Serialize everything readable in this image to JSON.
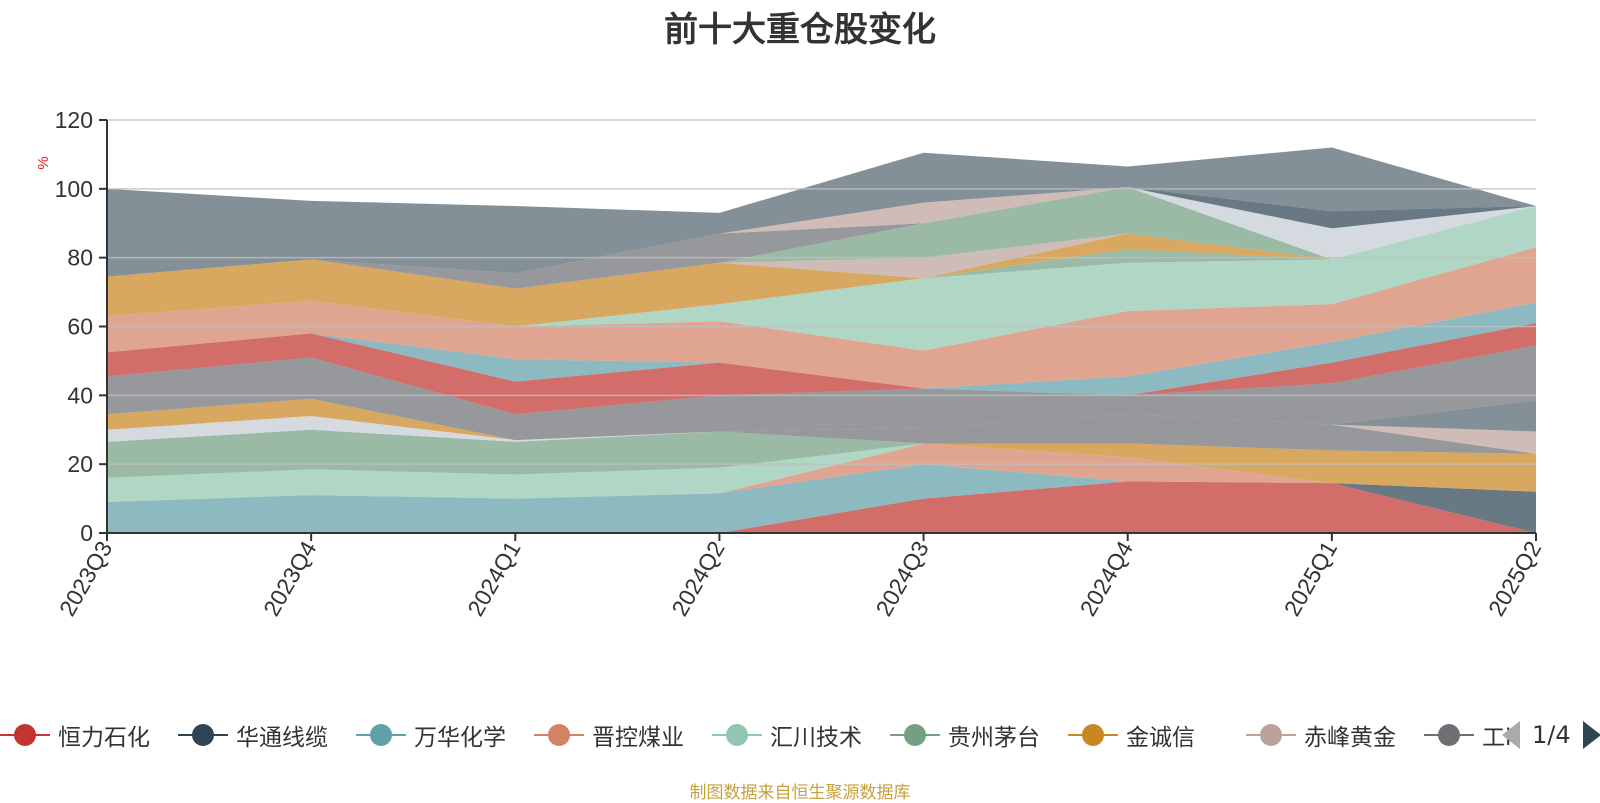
{
  "title": "前十大重仓股变化",
  "source": "制图数据来自恒生聚源数据库",
  "pager": {
    "text": "1/4"
  },
  "legend": [
    {
      "name": "恒力石化",
      "color": "#c23531"
    },
    {
      "name": "华通线缆",
      "color": "#2f4554"
    },
    {
      "name": "万华化学",
      "color": "#61a0a8"
    },
    {
      "name": "晋控煤业",
      "color": "#d48265"
    },
    {
      "name": "汇川技术",
      "color": "#91c7ae"
    },
    {
      "name": "贵州茅台",
      "color": "#749f83"
    },
    {
      "name": "金诚信",
      "color": "#ca8622"
    },
    {
      "name": "赤峰黄金",
      "color": "#bda29a"
    },
    {
      "name": "工i",
      "color": "#6e7074"
    }
  ],
  "chart_data": {
    "type": "area",
    "stacked": true,
    "title": "前十大重仓股变化",
    "ylabel": "%",
    "ylim": [
      0,
      120
    ],
    "yticks": [
      0,
      20,
      40,
      60,
      80,
      100,
      120
    ],
    "categories": [
      "2023Q3",
      "2023Q4",
      "2024Q1",
      "2024Q2",
      "2024Q3",
      "2024Q4",
      "2025Q1",
      "2025Q2"
    ],
    "series": [
      {
        "color": "#c23531",
        "values": [
          0,
          0,
          0,
          0,
          10,
          15,
          14.5,
          0
        ]
      },
      {
        "color": "#2f4554",
        "values": [
          0,
          0,
          0,
          0,
          0,
          0,
          0,
          12
        ]
      },
      {
        "color": "#61a0a8",
        "values": [
          9,
          11,
          10,
          11.5,
          10,
          0,
          0,
          0
        ]
      },
      {
        "color": "#d48265",
        "values": [
          0,
          0,
          0,
          0,
          6,
          7,
          0,
          0
        ]
      },
      {
        "color": "#91c7ae",
        "values": [
          7,
          7.5,
          7,
          7.5,
          0,
          0,
          0,
          0
        ]
      },
      {
        "color": "#ca8622",
        "values": [
          0,
          0,
          0,
          0,
          0,
          4,
          9.5,
          11
        ]
      },
      {
        "color": "#749f83",
        "values": [
          10.5,
          11.5,
          9.5,
          10.5,
          0,
          0,
          0,
          0
        ]
      },
      {
        "color": "#6e7074",
        "values": [
          0,
          0,
          0,
          0,
          4.5,
          8.5,
          7.5,
          0
        ]
      },
      {
        "color": "#bda29a",
        "values": [
          0,
          0,
          0,
          0,
          0,
          0,
          0,
          6.5
        ]
      },
      {
        "color": "#546570",
        "values": [
          0,
          0,
          0,
          0,
          0,
          0,
          0,
          9
        ]
      },
      {
        "color": "#c4ccd3",
        "values": [
          3.5,
          4,
          0.5,
          0,
          0,
          0,
          0,
          0
        ]
      },
      {
        "color": "#ca8622",
        "values": [
          4.5,
          5,
          0,
          0,
          0,
          0,
          0,
          0
        ]
      },
      {
        "color": "#6e7074",
        "values": [
          11,
          12,
          7.5,
          10.5,
          11.5,
          5.5,
          12,
          16
        ]
      },
      {
        "color": "#c23531",
        "values": [
          7,
          7,
          9.5,
          9.5,
          0,
          0,
          6,
          6.5
        ]
      },
      {
        "color": "#61a0a8",
        "values": [
          0,
          0,
          6.5,
          0,
          0,
          5.5,
          6,
          6
        ]
      },
      {
        "color": "#d48265",
        "values": [
          10.5,
          9.5,
          9.5,
          12,
          11,
          19,
          11,
          16
        ]
      },
      {
        "color": "#91c7ae",
        "values": [
          0,
          0,
          0,
          5,
          21,
          14,
          13,
          12
        ]
      },
      {
        "color": "#749f83",
        "values": [
          0,
          0,
          0,
          0,
          0,
          4,
          0,
          0
        ]
      },
      {
        "color": "#ca8622",
        "values": [
          11.5,
          12,
          11,
          12,
          0,
          4.5,
          0,
          0
        ]
      },
      {
        "color": "#bda29a",
        "values": [
          0,
          0,
          0,
          0,
          6,
          0,
          0,
          0
        ]
      },
      {
        "color": "#749f83",
        "values": [
          0,
          0,
          0,
          0,
          10,
          13.5,
          0,
          0
        ]
      },
      {
        "color": "#c4ccd3",
        "values": [
          0,
          0,
          0,
          0,
          0,
          0,
          9,
          0
        ]
      },
      {
        "color": "#2f4554",
        "values": [
          0,
          0,
          0,
          0,
          0,
          0,
          5,
          0
        ]
      },
      {
        "color": "#6e7074",
        "values": [
          0,
          0,
          4.5,
          8.5,
          0,
          0,
          0,
          0
        ]
      },
      {
        "color": "#bda29a",
        "values": [
          0,
          0,
          0,
          0,
          6,
          0,
          0,
          0
        ]
      },
      {
        "color": "#546570",
        "values": [
          25.5,
          17,
          19.5,
          6,
          14.5,
          6,
          18.5,
          0
        ]
      }
    ]
  }
}
